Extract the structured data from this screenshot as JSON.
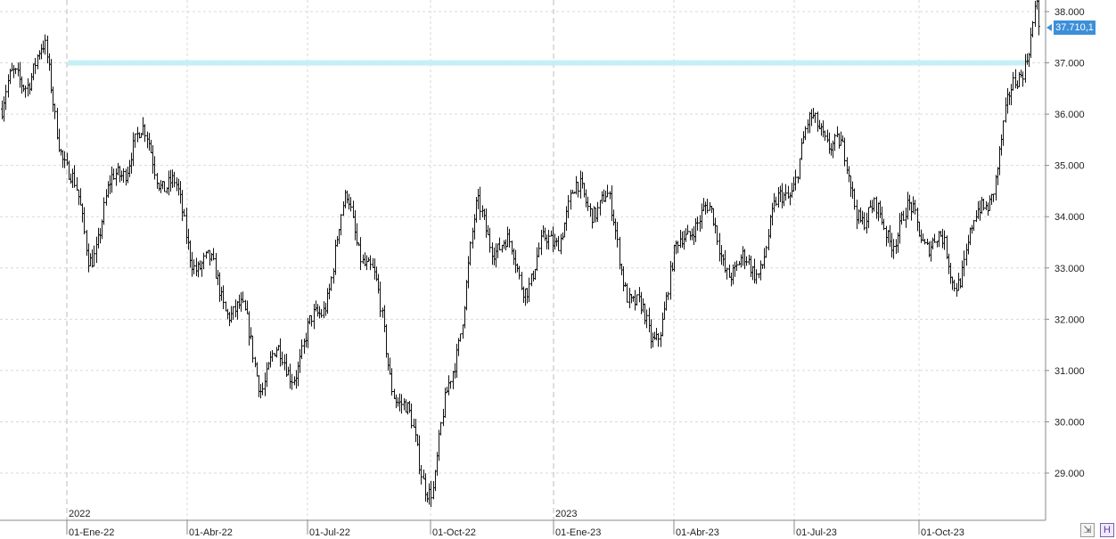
{
  "chart_data": {
    "type": "ohlc",
    "instrument_last_price_label": "37.710,1",
    "y_ticks": [
      "38.000",
      "37.000",
      "36.000",
      "35.000",
      "34.000",
      "33.000",
      "32.000",
      "31.000",
      "30.000",
      "29.000"
    ],
    "y_tick_values": [
      38000,
      37000,
      36000,
      35000,
      34000,
      33000,
      32000,
      31000,
      30000,
      29000
    ],
    "ylim": [
      28700,
      38100
    ],
    "x_tick_labels": [
      "01-Ene-22",
      "01-Abr-22",
      "01-Jul-22",
      "01-Oct-22",
      "01-Ene-23",
      "01-Abr-23",
      "01-Jul-23",
      "01-Oct-23"
    ],
    "year_labels": [
      "2022",
      "2023"
    ],
    "resistance_level": 37000,
    "last_price": 37710,
    "approx_weekly_closes": [
      {
        "date": "2021-12",
        "value": 36100
      },
      {
        "date": "2022-01",
        "value": 36700
      },
      {
        "date": "2022-02",
        "value": 33800
      },
      {
        "date": "2022-03",
        "value": 35100
      },
      {
        "date": "2022-04",
        "value": 34500
      },
      {
        "date": "2022-05",
        "value": 32900
      },
      {
        "date": "2022-06",
        "value": 30500
      },
      {
        "date": "2022-07",
        "value": 31800
      },
      {
        "date": "2022-08",
        "value": 34000
      },
      {
        "date": "2022-09",
        "value": 31000
      },
      {
        "date": "2022-10",
        "value": 29100
      },
      {
        "date": "2022-11",
        "value": 33500
      },
      {
        "date": "2022-12",
        "value": 33200
      },
      {
        "date": "2023-01",
        "value": 34000
      },
      {
        "date": "2023-02",
        "value": 33900
      },
      {
        "date": "2023-03",
        "value": 32000
      },
      {
        "date": "2023-04",
        "value": 33700
      },
      {
        "date": "2023-05",
        "value": 33000
      },
      {
        "date": "2023-06",
        "value": 34300
      },
      {
        "date": "2023-07",
        "value": 35500
      },
      {
        "date": "2023-08",
        "value": 34500
      },
      {
        "date": "2023-09",
        "value": 33600
      },
      {
        "date": "2023-10",
        "value": 32800
      },
      {
        "date": "2023-11",
        "value": 35300
      },
      {
        "date": "2023-12",
        "value": 37700
      }
    ]
  },
  "colors": {
    "bars": "#111111",
    "resistance_band": "#bfeff5",
    "price_tag": "#3d8fd8"
  },
  "icons": {
    "zoom": "zoom-icon",
    "save": "save-icon"
  },
  "labels": {
    "zoom_glyph": "⇲",
    "save_glyph": "H"
  }
}
